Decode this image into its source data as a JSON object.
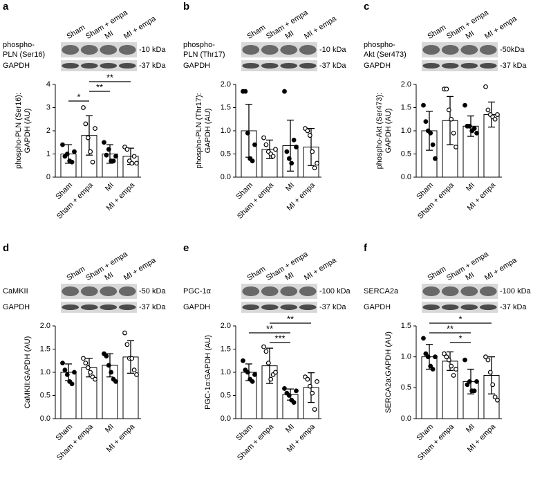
{
  "chart_data": [
    {
      "type": "bar",
      "panel_label": "a",
      "blot": [
        {
          "label": [
            "phospho-",
            "PLN (Ser16)"
          ],
          "size": "-10 kDa"
        },
        {
          "label": [
            "GAPDH"
          ],
          "size": "-37 kDa"
        }
      ],
      "y_label": [
        "phospho-PLN (Ser16):",
        "GAPDH (AU)"
      ],
      "categories": [
        "Sham",
        "Sham + empa",
        "MI",
        "MI + empa"
      ],
      "values": [
        1.0,
        1.8,
        1.0,
        0.9
      ],
      "errors": [
        0.4,
        0.85,
        0.4,
        0.35
      ],
      "points": [
        [
          1.4,
          0.9,
          1.0,
          0.7,
          0.65,
          1.1
        ],
        [
          3.0,
          2.3,
          1.7,
          1.1,
          0.65,
          2.1
        ],
        [
          1.5,
          0.95,
          1.2,
          0.7,
          0.7,
          0.9
        ],
        [
          1.3,
          1.2,
          0.7,
          0.6,
          0.9,
          0.6
        ]
      ],
      "marker_fill": [
        "#000000",
        "#ffffff",
        "#000000",
        "#ffffff"
      ],
      "color": "#ffffff",
      "ylim": [
        0,
        4
      ],
      "yticks": [
        0,
        1,
        2,
        3,
        4
      ],
      "significance": [
        {
          "between": [
            "Sham + empa",
            "MI + empa"
          ],
          "label": "**"
        },
        {
          "between": [
            "Sham + empa",
            "MI"
          ],
          "label": "**"
        },
        {
          "between": [
            "Sham",
            "Sham + empa"
          ],
          "label": "*"
        }
      ]
    },
    {
      "type": "bar",
      "panel_label": "b",
      "blot": [
        {
          "label": [
            "phospho-",
            "PLN (Thr17)"
          ],
          "size": "-10 kDa"
        },
        {
          "label": [
            "GAPDH"
          ],
          "size": "-37 kDa"
        }
      ],
      "y_label": [
        "phospho-PLN (Thr17):",
        "GAPDH (AU)"
      ],
      "categories": [
        "Sham",
        "Sham + empa",
        "MI",
        "MI + empa"
      ],
      "values": [
        1.0,
        0.6,
        0.68,
        0.65
      ],
      "errors": [
        0.57,
        0.2,
        0.55,
        0.4
      ],
      "points": [
        [
          1.85,
          1.85,
          0.95,
          0.4,
          0.35,
          0.7
        ],
        [
          0.85,
          0.7,
          0.55,
          0.5,
          0.45,
          0.6
        ],
        [
          1.85,
          0.55,
          0.4,
          0.3,
          0.8,
          0.65
        ],
        [
          1.05,
          1.0,
          0.9,
          0.55,
          0.2,
          0.3
        ]
      ],
      "marker_fill": [
        "#000000",
        "#ffffff",
        "#000000",
        "#ffffff"
      ],
      "color": "#ffffff",
      "ylim": [
        0,
        2
      ],
      "yticks": [
        {
          "value": 0,
          "label": "0.0"
        },
        {
          "value": 0.5,
          "label": "0.5"
        },
        {
          "value": 1,
          "label": "1.0"
        },
        {
          "value": 1.5,
          "label": "1.5"
        },
        {
          "value": 2,
          "label": "2.0"
        }
      ],
      "significance": []
    },
    {
      "type": "bar",
      "panel_label": "c",
      "blot": [
        {
          "label": [
            "phospho-",
            "Akt (Ser473)"
          ],
          "size": "-50kDa"
        },
        {
          "label": [
            "GAPDH"
          ],
          "size": "-37 kDa"
        }
      ],
      "y_label": [
        "phospho-Akt (Ser473):",
        "GAPDH (AU)"
      ],
      "categories": [
        "Sham",
        "Sham + empa",
        "MI",
        "MI + empa"
      ],
      "values": [
        1.0,
        1.22,
        1.1,
        1.35
      ],
      "errors": [
        0.42,
        0.52,
        0.22,
        0.27
      ],
      "points": [
        [
          1.55,
          1.2,
          1.0,
          0.95,
          0.7,
          0.4
        ],
        [
          1.9,
          1.9,
          1.45,
          1.25,
          0.95,
          0.65
        ],
        [
          1.55,
          1.1,
          1.1,
          1.0,
          1.05,
          0.95
        ],
        [
          1.95,
          1.45,
          1.35,
          1.3,
          1.25,
          1.35
        ]
      ],
      "marker_fill": [
        "#000000",
        "#ffffff",
        "#000000",
        "#ffffff"
      ],
      "color": "#ffffff",
      "ylim": [
        0,
        2
      ],
      "yticks": [
        {
          "value": 0,
          "label": "0.0"
        },
        {
          "value": 0.5,
          "label": "0.5"
        },
        {
          "value": 1,
          "label": "1.0"
        },
        {
          "value": 1.5,
          "label": "1.5"
        },
        {
          "value": 2,
          "label": "2.0"
        }
      ],
      "significance": []
    },
    {
      "type": "bar",
      "panel_label": "d",
      "blot": [
        {
          "label": [
            "CaMKII"
          ],
          "size": "-50 kDa"
        },
        {
          "label": [
            "GAPDH"
          ],
          "size": "-37 kDa"
        }
      ],
      "y_label": [
        "CaMKII:GAPDH (AU)"
      ],
      "categories": [
        "Sham",
        "Sham + empa",
        "MI",
        "MI + empa"
      ],
      "values": [
        1.0,
        1.1,
        1.15,
        1.33
      ],
      "errors": [
        0.18,
        0.2,
        0.25,
        0.35
      ],
      "points": [
        [
          1.2,
          1.05,
          0.95,
          0.8,
          0.75,
          1.0
        ],
        [
          1.3,
          1.2,
          1.1,
          1.0,
          0.9,
          0.85
        ],
        [
          1.4,
          1.35,
          1.15,
          1.0,
          0.85,
          0.8
        ],
        [
          1.85,
          1.6,
          1.3,
          1.3,
          1.05,
          0.95
        ]
      ],
      "marker_fill": [
        "#000000",
        "#ffffff",
        "#000000",
        "#ffffff"
      ],
      "color": "#ffffff",
      "ylim": [
        0,
        2
      ],
      "yticks": [
        {
          "value": 0,
          "label": "0.0"
        },
        {
          "value": 0.5,
          "label": "0.5"
        },
        {
          "value": 1,
          "label": "1.0"
        },
        {
          "value": 1.5,
          "label": "1.5"
        },
        {
          "value": 2,
          "label": "2.0"
        }
      ],
      "significance": []
    },
    {
      "type": "bar",
      "panel_label": "e",
      "blot": [
        {
          "label": [
            "PGC-1α"
          ],
          "size": "-100 kDa"
        },
        {
          "label": [
            "GAPDH"
          ],
          "size": "-37 kDa"
        }
      ],
      "y_label": [
        "PGC-1α:GAPDH (AU)"
      ],
      "categories": [
        "Sham",
        "Sham + empa",
        "MI",
        "MI + empa"
      ],
      "values": [
        1.0,
        1.14,
        0.52,
        0.67
      ],
      "errors": [
        0.18,
        0.38,
        0.12,
        0.32
      ],
      "points": [
        [
          1.25,
          1.05,
          1.0,
          0.85,
          0.8,
          0.95
        ],
        [
          1.55,
          1.45,
          1.2,
          0.85,
          0.95,
          1.0
        ],
        [
          0.65,
          0.55,
          0.5,
          0.4,
          0.35,
          0.6
        ],
        [
          0.9,
          0.85,
          0.7,
          0.55,
          0.2,
          0.8
        ]
      ],
      "marker_fill": [
        "#000000",
        "#ffffff",
        "#000000",
        "#ffffff"
      ],
      "color": "#ffffff",
      "ylim": [
        0,
        2
      ],
      "yticks": [
        {
          "value": 0,
          "label": "0.0"
        },
        {
          "value": 0.5,
          "label": "0.5"
        },
        {
          "value": 1,
          "label": "1.0"
        },
        {
          "value": 1.5,
          "label": "1.5"
        },
        {
          "value": 2,
          "label": "2.0"
        }
      ],
      "significance": [
        {
          "between": [
            "Sham + empa",
            "MI + empa"
          ],
          "label": "**"
        },
        {
          "between": [
            "Sham",
            "MI"
          ],
          "label": "**"
        },
        {
          "between": [
            "Sham + empa",
            "MI"
          ],
          "label": "***"
        }
      ]
    },
    {
      "type": "bar",
      "panel_label": "f",
      "blot": [
        {
          "label": [
            "SERCA2a"
          ],
          "size": "-100 kDa"
        },
        {
          "label": [
            "GAPDH"
          ],
          "size": "-37 kDa"
        }
      ],
      "y_label": [
        "SERCA2a:GAPDH (AU)"
      ],
      "categories": [
        "Sham",
        "Sham + empa",
        "MI",
        "MI + empa"
      ],
      "values": [
        1.0,
        0.93,
        0.6,
        0.7
      ],
      "errors": [
        0.2,
        0.15,
        0.2,
        0.3
      ],
      "points": [
        [
          1.3,
          1.05,
          1.0,
          0.85,
          0.8,
          1.0
        ],
        [
          1.05,
          1.0,
          0.95,
          0.85,
          0.7,
          0.8
        ],
        [
          0.95,
          0.55,
          0.6,
          0.45,
          0.45,
          0.6
        ],
        [
          1.0,
          0.95,
          0.75,
          0.55,
          0.35,
          0.3
        ]
      ],
      "marker_fill": [
        "#000000",
        "#ffffff",
        "#000000",
        "#ffffff"
      ],
      "color": "#ffffff",
      "ylim": [
        0,
        1.5
      ],
      "yticks": [
        {
          "value": 0,
          "label": "0.0"
        },
        {
          "value": 0.5,
          "label": "0.5"
        },
        {
          "value": 1,
          "label": "1.0"
        },
        {
          "value": 1.5,
          "label": "1.5"
        }
      ],
      "significance": [
        {
          "between": [
            "Sham",
            "MI + empa"
          ],
          "label": "*"
        },
        {
          "between": [
            "Sham",
            "MI"
          ],
          "label": "**"
        },
        {
          "between": [
            "Sham + empa",
            "MI"
          ],
          "label": "*"
        }
      ]
    }
  ]
}
